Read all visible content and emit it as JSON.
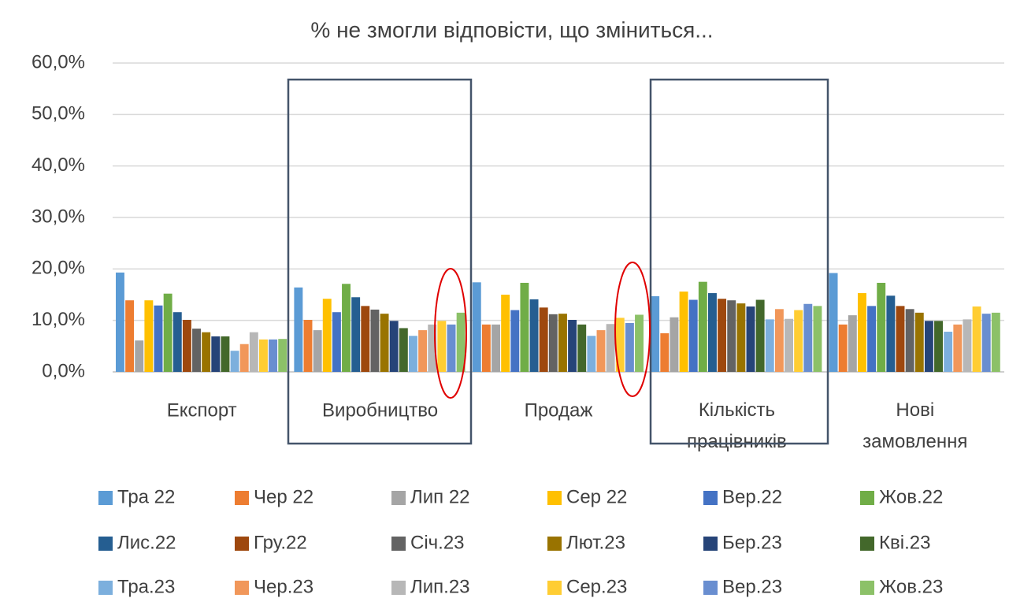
{
  "chart_data": {
    "type": "bar",
    "title": "% не змогли відповісти, що зміниться...",
    "categories": [
      "Експорт",
      "Виробництво",
      "Продаж",
      "Кількість працівників",
      "Нові замовлення"
    ],
    "ylim": [
      0,
      60
    ],
    "yticks": [
      {
        "value": 0,
        "label": "0,0%"
      },
      {
        "value": 10,
        "label": "10,0%"
      },
      {
        "value": 20,
        "label": "20,0%"
      },
      {
        "value": 30,
        "label": "30,0%"
      },
      {
        "value": 40,
        "label": "40,0%"
      },
      {
        "value": 50,
        "label": "50,0%"
      },
      {
        "value": 60,
        "label": "60,0%"
      }
    ],
    "grid": true,
    "legend": "bottom",
    "series": [
      {
        "name": "Тра 22",
        "color": "#5b9bd5",
        "values": [
          19.3,
          16.4,
          17.4,
          14.7,
          19.2
        ]
      },
      {
        "name": "Чер 22",
        "color": "#ed7d31",
        "values": [
          13.9,
          10.1,
          9.2,
          7.5,
          9.2
        ]
      },
      {
        "name": "Лип 22",
        "color": "#a5a5a5",
        "values": [
          6.1,
          8.1,
          9.2,
          10.6,
          11.0
        ]
      },
      {
        "name": "Сер 22",
        "color": "#ffc000",
        "values": [
          13.9,
          14.2,
          15.0,
          15.6,
          15.3
        ]
      },
      {
        "name": "Вер.22",
        "color": "#4472c4",
        "values": [
          12.9,
          11.6,
          12.0,
          14.0,
          12.8
        ]
      },
      {
        "name": "Жов.22",
        "color": "#70ad47",
        "values": [
          15.2,
          17.1,
          17.3,
          17.5,
          17.3
        ]
      },
      {
        "name": "Лис.22",
        "color": "#255e91",
        "values": [
          11.6,
          14.5,
          14.1,
          15.3,
          14.8
        ]
      },
      {
        "name": "Гру.22",
        "color": "#9e480e",
        "values": [
          10.1,
          12.8,
          12.5,
          14.2,
          12.8
        ]
      },
      {
        "name": "Січ.23",
        "color": "#636363",
        "values": [
          8.4,
          12.1,
          11.2,
          13.9,
          12.2
        ]
      },
      {
        "name": "Лют.23",
        "color": "#997300",
        "values": [
          7.7,
          11.3,
          11.3,
          13.3,
          11.5
        ]
      },
      {
        "name": "Бер.23",
        "color": "#264478",
        "values": [
          6.9,
          9.9,
          10.1,
          12.7,
          9.9
        ]
      },
      {
        "name": "Кві.23",
        "color": "#43682b",
        "values": [
          6.9,
          8.5,
          9.2,
          14.0,
          9.9
        ]
      },
      {
        "name": "Тра.23",
        "color": "#7cafdd",
        "values": [
          4.1,
          7.0,
          7.0,
          10.2,
          7.8
        ]
      },
      {
        "name": "Чер.23",
        "color": "#f1975a",
        "values": [
          5.4,
          8.1,
          8.1,
          12.2,
          9.2
        ]
      },
      {
        "name": "Лип.23",
        "color": "#b7b7b7",
        "values": [
          7.7,
          9.2,
          9.3,
          10.3,
          10.2
        ]
      },
      {
        "name": "Сер.23",
        "color": "#ffcd33",
        "values": [
          6.3,
          9.9,
          10.5,
          12.0,
          12.7
        ]
      },
      {
        "name": "Вер.23",
        "color": "#698ed0",
        "values": [
          6.3,
          9.2,
          9.5,
          13.2,
          11.3
        ]
      },
      {
        "name": "Жов.23",
        "color": "#8cc168",
        "values": [
          6.4,
          11.5,
          11.1,
          12.8,
          11.5
        ]
      }
    ]
  }
}
